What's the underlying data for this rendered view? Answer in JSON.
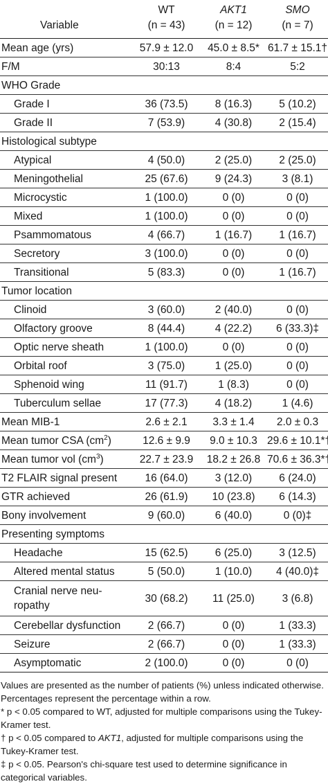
{
  "header": {
    "variable": "Variable",
    "groups": [
      {
        "name": "WT",
        "n": "(n = 43)",
        "italic": false
      },
      {
        "name": "AKT1",
        "n": "(n = 12)",
        "italic": true
      },
      {
        "name": "SMO",
        "n": "(n = 7)",
        "italic": true
      }
    ]
  },
  "rows": [
    {
      "label": "Mean age (yrs)",
      "vals": [
        "57.9 ± 12.0",
        "45.0 ± 8.5*",
        "61.7 ± 15.1†"
      ],
      "indent": false,
      "rule": true
    },
    {
      "label": "F/M",
      "vals": [
        "30:13",
        "8:4",
        "5:2"
      ],
      "indent": false,
      "rule": true
    },
    {
      "label": "WHO Grade",
      "vals": [
        "",
        "",
        ""
      ],
      "indent": false,
      "rule": true
    },
    {
      "label": "Grade I",
      "vals": [
        "36 (73.5)",
        "8 (16.3)",
        "5 (10.2)"
      ],
      "indent": true,
      "rule": true
    },
    {
      "label": "Grade II",
      "vals": [
        "7 (53.9)",
        "4 (30.8)",
        "2 (15.4)"
      ],
      "indent": true,
      "rule": true
    },
    {
      "label": "Histological subtype",
      "vals": [
        "",
        "",
        ""
      ],
      "indent": false,
      "rule": true
    },
    {
      "label": "Atypical",
      "vals": [
        "4 (50.0)",
        "2 (25.0)",
        "2 (25.0)"
      ],
      "indent": true,
      "rule": true
    },
    {
      "label": "Meningothelial",
      "vals": [
        "25 (67.6)",
        "9 (24.3)",
        "3 (8.1)"
      ],
      "indent": true,
      "rule": true
    },
    {
      "label": "Microcystic",
      "vals": [
        "1 (100.0)",
        "0 (0)",
        "0 (0)"
      ],
      "indent": true,
      "rule": true
    },
    {
      "label": "Mixed",
      "vals": [
        "1 (100.0)",
        "0 (0)",
        "0 (0)"
      ],
      "indent": true,
      "rule": true
    },
    {
      "label": "Psammomatous",
      "vals": [
        "4 (66.7)",
        "1 (16.7)",
        "1 (16.7)"
      ],
      "indent": true,
      "rule": true
    },
    {
      "label": "Secretory",
      "vals": [
        "3 (100.0)",
        "0 (0)",
        "0 (0)"
      ],
      "indent": true,
      "rule": true
    },
    {
      "label": "Transitional",
      "vals": [
        "5 (83.3)",
        "0 (0)",
        "1 (16.7)"
      ],
      "indent": true,
      "rule": true
    },
    {
      "label": "Tumor location",
      "vals": [
        "",
        "",
        ""
      ],
      "indent": false,
      "rule": true
    },
    {
      "label": "Clinoid",
      "vals": [
        "3 (60.0)",
        "2 (40.0)",
        "0 (0)"
      ],
      "indent": true,
      "rule": true
    },
    {
      "label": "Olfactory groove",
      "vals": [
        "8 (44.4)",
        "4 (22.2)",
        "6 (33.3)‡"
      ],
      "indent": true,
      "rule": true
    },
    {
      "label": "Optic nerve sheath",
      "vals": [
        "1 (100.0)",
        "0 (0)",
        "0 (0)"
      ],
      "indent": true,
      "rule": true
    },
    {
      "label": "Orbital roof",
      "vals": [
        "3 (75.0)",
        "1 (25.0)",
        "0 (0)"
      ],
      "indent": true,
      "rule": true
    },
    {
      "label": "Sphenoid wing",
      "vals": [
        "11 (91.7)",
        "1 (8.3)",
        "0 (0)"
      ],
      "indent": true,
      "rule": true
    },
    {
      "label": "Tuberculum sellae",
      "vals": [
        "17 (77.3)",
        "4 (18.2)",
        "1 (4.6)"
      ],
      "indent": true,
      "rule": true
    },
    {
      "label": "Mean MIB-1",
      "vals": [
        "2.6 ± 2.1",
        "3.3 ± 1.4",
        "2.0 ± 0.3"
      ],
      "indent": false,
      "rule": true
    },
    {
      "label": "Mean tumor CSA (cm",
      "sup": "2",
      "suffix": ")",
      "vals": [
        "12.6 ± 9.9",
        "9.0 ± 10.3",
        "29.6 ± 10.1*†"
      ],
      "indent": false,
      "rule": true
    },
    {
      "label": "Mean tumor vol (cm",
      "sup": "3",
      "suffix": ")",
      "vals": [
        "22.7 ± 23.9",
        "18.2 ± 26.8",
        "70.6 ± 36.3*†"
      ],
      "indent": false,
      "rule": true
    },
    {
      "label": "T2 FLAIR signal present",
      "vals": [
        "16 (64.0)",
        "3 (12.0)",
        "6 (24.0)"
      ],
      "indent": false,
      "rule": true
    },
    {
      "label": "GTR achieved",
      "vals": [
        "26 (61.9)",
        "10 (23.8)",
        "6 (14.3)"
      ],
      "indent": false,
      "rule": true
    },
    {
      "label": "Bony involvement",
      "vals": [
        "9 (60.0)",
        "6 (40.0)",
        "0 (0)‡"
      ],
      "indent": false,
      "rule": true
    },
    {
      "label": "Presenting symptoms",
      "vals": [
        "",
        "",
        ""
      ],
      "indent": false,
      "rule": true
    },
    {
      "label": "Headache",
      "vals": [
        "15 (62.5)",
        "6 (25.0)",
        "3 (12.5)"
      ],
      "indent": true,
      "rule": true
    },
    {
      "label": "Altered mental status",
      "vals": [
        "5 (50.0)",
        "1 (10.0)",
        "4 (40.0)‡"
      ],
      "indent": true,
      "rule": true
    },
    {
      "label": "Cranial nerve neu-",
      "label2": "ropathy",
      "vals": [
        "30 (68.2)",
        "11 (25.0)",
        "3 (6.8)"
      ],
      "indent": true,
      "rule": true,
      "tall": true
    },
    {
      "label": "Cerebellar dysfunction",
      "vals": [
        "2 (66.7)",
        "0 (0)",
        "1 (33.3)"
      ],
      "indent": true,
      "rule": true
    },
    {
      "label": "Seizure",
      "vals": [
        "2 (66.7)",
        "0 (0)",
        "1 (33.3)"
      ],
      "indent": true,
      "rule": true
    },
    {
      "label": "Asymptomatic",
      "vals": [
        "2 (100.0)",
        "0 (0)",
        "0 (0)"
      ],
      "indent": true,
      "rule": true
    }
  ],
  "footnotes": {
    "values_note": "Values are presented as the number of patients (%) unless indicated otherwise. Percentages represent the percentage within a row.",
    "star": "*  p < 0.05 compared to WT, adjusted for multiple comparisons using the Tukey-Kramer test.",
    "dagger_pre": "†  p < 0.05 compared to ",
    "dagger_gene": "AKT1",
    "dagger_post": ", adjusted for multiple comparisons using the Tukey-Kramer test.",
    "ddagger": "‡  p < 0.05. Pearson's chi-square test used to determine significance in categorical variables."
  }
}
